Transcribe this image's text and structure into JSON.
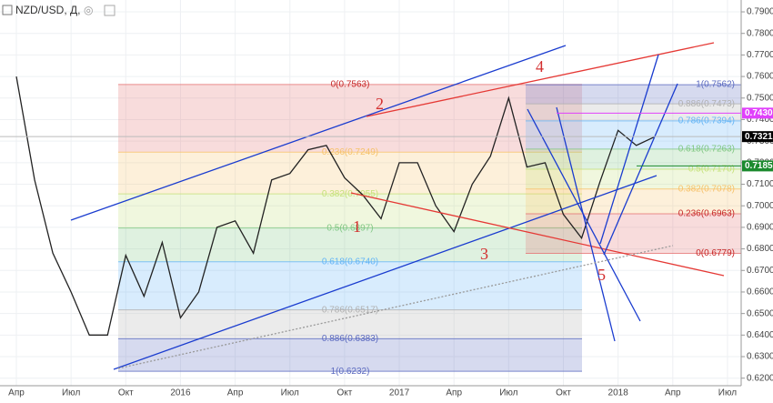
{
  "chart_data": {
    "type": "line",
    "title": "NZD/USD, Д,",
    "categories": [
      "Апр",
      null,
      null,
      "Июл",
      null,
      null,
      "Окт",
      null,
      null,
      "2016",
      null,
      null,
      "Апр",
      null,
      null,
      "Июл",
      null,
      null,
      "Окт",
      null,
      null,
      "2017",
      null,
      null,
      "Апр",
      null,
      null,
      "Июл",
      null,
      null,
      "Окт",
      null,
      null,
      "2018",
      null,
      null,
      "Апр",
      null,
      null,
      "Июл"
    ],
    "values": [
      0.76,
      0.712,
      0.678,
      0.66,
      0.64,
      0.64,
      0.677,
      0.658,
      0.683,
      0.648,
      0.66,
      0.69,
      0.693,
      0.678,
      0.712,
      0.715,
      0.726,
      0.728,
      0.713,
      0.705,
      0.694,
      0.72,
      0.72,
      0.7,
      0.688,
      0.71,
      0.723,
      0.75,
      0.718,
      0.72,
      0.696,
      0.685,
      0.711,
      0.735,
      0.728,
      0.732,
      null,
      null,
      null,
      null
    ],
    "color": "#222222",
    "ylim": [
      0.6165,
      0.7955
    ],
    "yticks": [
      {
        "value": 0.62,
        "label": "0.6200"
      },
      {
        "value": 0.63,
        "label": "0.6300"
      },
      {
        "value": 0.64,
        "label": "0.6400"
      },
      {
        "value": 0.65,
        "label": "0.6500"
      },
      {
        "value": 0.66,
        "label": "0.6600"
      },
      {
        "value": 0.67,
        "label": "0.6700"
      },
      {
        "value": 0.68,
        "label": "0.6800"
      },
      {
        "value": 0.69,
        "label": "0.6900"
      },
      {
        "value": 0.7,
        "label": "0.7000"
      },
      {
        "value": 0.71,
        "label": "0.7100"
      },
      {
        "value": 0.72,
        "label": "0.7200"
      },
      {
        "value": 0.73,
        "label": "0.7300"
      },
      {
        "value": 0.74,
        "label": "0.7400"
      },
      {
        "value": 0.75,
        "label": "0.7500"
      },
      {
        "value": 0.76,
        "label": "0.7600"
      },
      {
        "value": 0.77,
        "label": "0.7700"
      },
      {
        "value": 0.78,
        "label": "0.7800"
      },
      {
        "value": 0.79,
        "label": "0.7900"
      }
    ],
    "grid": true,
    "fib_left": {
      "levels": [
        {
          "value": 0.7563,
          "label": "0(0.7563)"
        },
        {
          "value": 0.7249,
          "label": "0.236(0.7249)"
        },
        {
          "value": 0.7055,
          "label": "0.382(0.7055)"
        },
        {
          "value": 0.6897,
          "label": "0.5(0.6897)"
        },
        {
          "value": 0.674,
          "label": "0.618(0.6740)"
        },
        {
          "value": 0.6517,
          "label": "0.786(0.6517)"
        },
        {
          "value": 0.6383,
          "label": "0.886(0.6383)"
        },
        {
          "value": 0.6232,
          "label": "1(0.6232)"
        }
      ],
      "colors": [
        "#e57373",
        "#f6c26b",
        "#c5e17a",
        "#81c784",
        "#64b5f6",
        "#b0b0b0",
        "#5c6bc0"
      ]
    },
    "fib_right": {
      "levels": [
        {
          "value": 0.7562,
          "label": "1(0.7562)"
        },
        {
          "value": 0.7473,
          "label": "0.886(0.7473)"
        },
        {
          "value": 0.7394,
          "label": "0.786(0.7394)"
        },
        {
          "value": 0.7263,
          "label": "0.618(0.7263)"
        },
        {
          "value": 0.717,
          "label": "0.5(0.7170)"
        },
        {
          "value": 0.7078,
          "label": "0.382(0.7078)"
        },
        {
          "value": 0.6963,
          "label": "0.236(0.6963)"
        },
        {
          "value": 0.6779,
          "label": "0(0.6779)"
        }
      ],
      "colors": [
        "#5c6bc0",
        "#b0b0b0",
        "#64b5f6",
        "#81c784",
        "#c5e17a",
        "#f6c26b",
        "#e57373"
      ]
    },
    "waves": [
      "1",
      "2",
      "3",
      "4",
      "5"
    ],
    "price_labels": [
      {
        "value": 0.743,
        "label": "0.7430",
        "color": "#e040fb"
      },
      {
        "value": 0.7321,
        "label": "0.7321",
        "color": "#000000"
      },
      {
        "value": 0.7185,
        "label": "0.7185",
        "color": "#1b8a2e"
      }
    ]
  }
}
